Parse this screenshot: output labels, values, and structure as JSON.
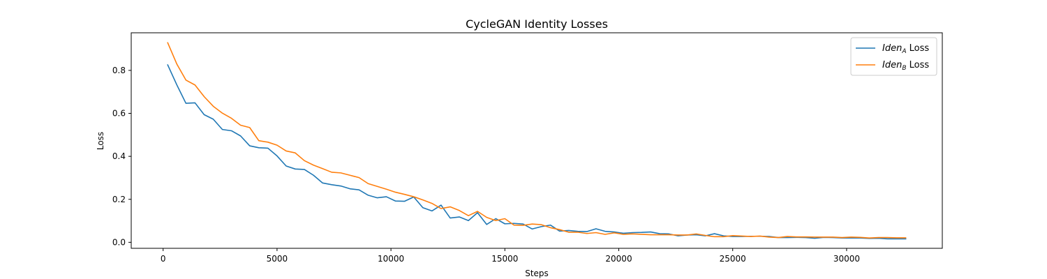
{
  "chart_data": {
    "type": "line",
    "title": "CycleGAN Identity Losses",
    "xlabel": "Steps",
    "ylabel": "Loss",
    "xlim": [
      -1400,
      34200
    ],
    "ylim": [
      -0.028,
      0.975
    ],
    "xticks": [
      0,
      5000,
      10000,
      15000,
      20000,
      25000,
      30000
    ],
    "xtick_labels": [
      "0",
      "5000",
      "10000",
      "15000",
      "20000",
      "25000",
      "30000"
    ],
    "yticks": [
      0.0,
      0.2,
      0.4,
      0.6,
      0.8
    ],
    "ytick_labels": [
      "0.0",
      "0.2",
      "0.4",
      "0.6",
      "0.8"
    ],
    "grid": false,
    "legend_position": "top-right",
    "series": [
      {
        "name": "Iden_A Loss",
        "legend_base": "Iden",
        "legend_sub": "A",
        "legend_suffix": " Loss",
        "color": "#1f77b4",
        "x": [
          200,
          600,
          1000,
          1400,
          1800,
          2200,
          2600,
          3000,
          3400,
          3800,
          4200,
          4600,
          5000,
          5400,
          5800,
          6200,
          6600,
          7000,
          7400,
          7800,
          8200,
          8600,
          9000,
          9400,
          9800,
          10200,
          10600,
          11000,
          11400,
          11800,
          12200,
          12600,
          13000,
          13400,
          13800,
          14200,
          14600,
          15000,
          15400,
          15800,
          16200,
          16600,
          17000,
          17400,
          17800,
          18200,
          18600,
          19000,
          19400,
          19800,
          20200,
          20600,
          21000,
          21400,
          21800,
          22200,
          22600,
          23000,
          23400,
          23800,
          24200,
          24600,
          25000,
          25400,
          25800,
          26200,
          26600,
          27000,
          27400,
          27800,
          28200,
          28600,
          29000,
          29400,
          29800,
          30200,
          30600,
          31000,
          31400,
          31800,
          32200,
          32600
        ],
        "y": [
          0.826,
          0.733,
          0.647,
          0.649,
          0.594,
          0.573,
          0.525,
          0.519,
          0.495,
          0.449,
          0.44,
          0.438,
          0.402,
          0.355,
          0.341,
          0.339,
          0.312,
          0.276,
          0.268,
          0.262,
          0.249,
          0.244,
          0.219,
          0.207,
          0.212,
          0.192,
          0.191,
          0.211,
          0.161,
          0.146,
          0.173,
          0.113,
          0.118,
          0.101,
          0.138,
          0.083,
          0.11,
          0.086,
          0.088,
          0.085,
          0.062,
          0.073,
          0.08,
          0.052,
          0.055,
          0.051,
          0.05,
          0.063,
          0.051,
          0.048,
          0.042,
          0.045,
          0.046,
          0.048,
          0.04,
          0.039,
          0.03,
          0.034,
          0.035,
          0.03,
          0.04,
          0.03,
          0.027,
          0.027,
          0.028,
          0.028,
          0.027,
          0.022,
          0.022,
          0.023,
          0.022,
          0.019,
          0.023,
          0.022,
          0.02,
          0.02,
          0.02,
          0.018,
          0.019,
          0.016,
          0.016,
          0.016
        ]
      },
      {
        "name": "Iden_B Loss",
        "legend_base": "Iden",
        "legend_sub": "B",
        "legend_suffix": " Loss",
        "color": "#ff7f0e",
        "x": [
          200,
          600,
          1000,
          1400,
          1800,
          2200,
          2600,
          3000,
          3400,
          3800,
          4200,
          4600,
          5000,
          5400,
          5800,
          6200,
          6600,
          7000,
          7400,
          7800,
          8200,
          8600,
          9000,
          9400,
          9800,
          10200,
          10600,
          11000,
          11400,
          11800,
          12200,
          12600,
          13000,
          13400,
          13800,
          14200,
          14600,
          15000,
          15400,
          15800,
          16200,
          16600,
          17000,
          17400,
          17800,
          18200,
          18600,
          19000,
          19400,
          19800,
          20200,
          20600,
          21000,
          21400,
          21800,
          22200,
          22600,
          23000,
          23400,
          23800,
          24200,
          24600,
          25000,
          25400,
          25800,
          26200,
          26600,
          27000,
          27400,
          27800,
          28200,
          28600,
          29000,
          29400,
          29800,
          30200,
          30600,
          31000,
          31400,
          31800,
          32200,
          32600
        ],
        "y": [
          0.929,
          0.83,
          0.755,
          0.732,
          0.678,
          0.633,
          0.601,
          0.577,
          0.545,
          0.534,
          0.473,
          0.466,
          0.452,
          0.425,
          0.416,
          0.38,
          0.359,
          0.343,
          0.326,
          0.323,
          0.312,
          0.301,
          0.273,
          0.26,
          0.247,
          0.233,
          0.223,
          0.212,
          0.197,
          0.181,
          0.157,
          0.165,
          0.148,
          0.124,
          0.144,
          0.116,
          0.101,
          0.11,
          0.08,
          0.079,
          0.085,
          0.082,
          0.068,
          0.059,
          0.047,
          0.047,
          0.041,
          0.045,
          0.037,
          0.044,
          0.037,
          0.039,
          0.037,
          0.035,
          0.035,
          0.035,
          0.034,
          0.034,
          0.039,
          0.032,
          0.026,
          0.026,
          0.031,
          0.029,
          0.027,
          0.029,
          0.024,
          0.022,
          0.027,
          0.025,
          0.025,
          0.024,
          0.024,
          0.024,
          0.022,
          0.024,
          0.023,
          0.02,
          0.022,
          0.022,
          0.021,
          0.021
        ]
      }
    ]
  }
}
